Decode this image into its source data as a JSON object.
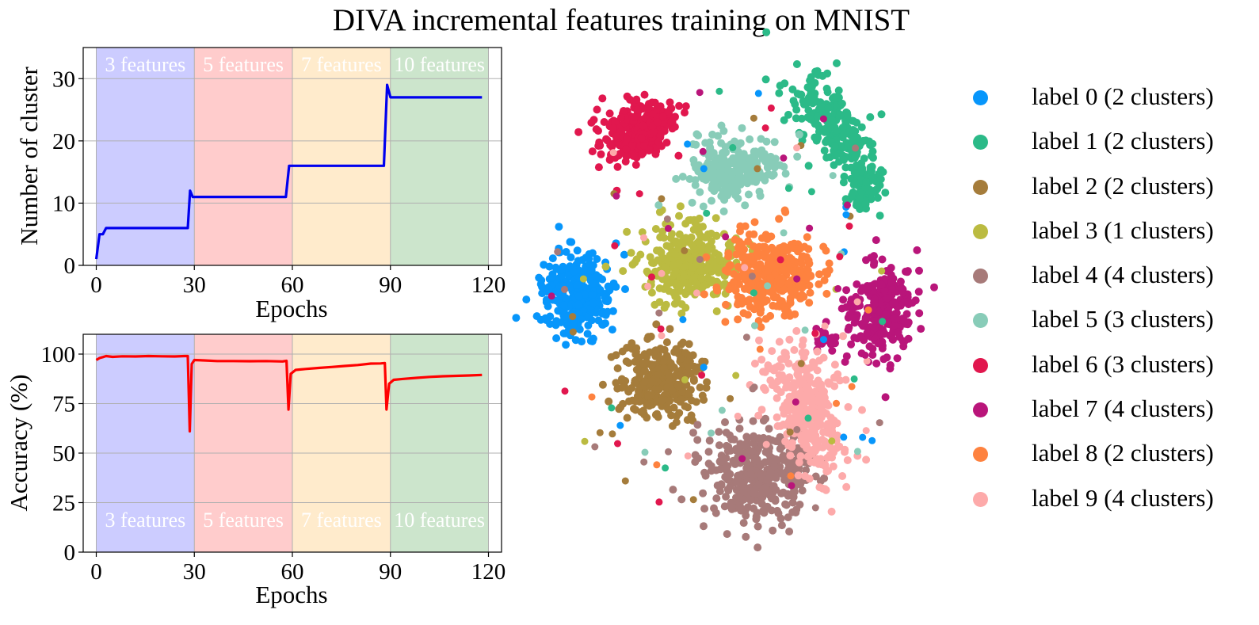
{
  "chart_data": [
    {
      "type": "line",
      "title": "DIVA incremental features training on MNIST",
      "xlabel": "Epochs",
      "ylabel": "Number of cluster",
      "xlim": [
        -4,
        124
      ],
      "ylim": [
        0,
        35
      ],
      "xticks": [
        "0",
        "30",
        "60",
        "90",
        "120"
      ],
      "yticks": [
        "0",
        "10",
        "20",
        "30"
      ],
      "grid": true,
      "color": "#0000ee",
      "phases": [
        {
          "label": "3 features",
          "start": 0,
          "end": 30,
          "color": "#ccccff"
        },
        {
          "label": "5 features",
          "start": 30,
          "end": 60,
          "color": "#ffcccc"
        },
        {
          "label": "7 features",
          "start": 60,
          "end": 90,
          "color": "#ffebcc"
        },
        {
          "label": "10 features",
          "start": 90,
          "end": 120,
          "color": "#cce5cc"
        }
      ],
      "x": [
        0,
        1,
        2,
        3,
        10,
        20,
        28,
        28.7,
        29.5,
        30,
        40,
        50,
        58,
        59,
        65,
        75,
        85,
        88,
        89,
        90,
        100,
        110,
        118
      ],
      "y": [
        1,
        5,
        5,
        6,
        6,
        6,
        6,
        12,
        11,
        11,
        11,
        11,
        11,
        16,
        16,
        16,
        16,
        16,
        29,
        27,
        27,
        27,
        27
      ]
    },
    {
      "type": "line",
      "xlabel": "Epochs",
      "ylabel": "Accuracy (%)",
      "xlim": [
        -4,
        124
      ],
      "ylim": [
        0,
        110
      ],
      "xticks": [
        "0",
        "30",
        "60",
        "90",
        "120"
      ],
      "yticks": [
        "0",
        "25",
        "50",
        "75",
        "100"
      ],
      "grid": true,
      "color": "#ff0000",
      "phases": [
        {
          "label": "3 features",
          "start": 0,
          "end": 30,
          "color": "#ccccff"
        },
        {
          "label": "5 features",
          "start": 30,
          "end": 60,
          "color": "#ffcccc"
        },
        {
          "label": "7 features",
          "start": 60,
          "end": 90,
          "color": "#ffebcc"
        },
        {
          "label": "10 features",
          "start": 90,
          "end": 120,
          "color": "#cce5cc"
        }
      ],
      "x": [
        0,
        1,
        2,
        3,
        5,
        8,
        12,
        16,
        20,
        24,
        27,
        28,
        28.6,
        29.2,
        30,
        33,
        37,
        42,
        47,
        52,
        57,
        58.2,
        58.8,
        59.5,
        61,
        64,
        68,
        72,
        76,
        80,
        84,
        87,
        88.3,
        88.8,
        89.6,
        91,
        94,
        98,
        102,
        106,
        110,
        114,
        118
      ],
      "y": [
        97,
        98,
        98.5,
        99,
        98.6,
        98.9,
        98.8,
        99,
        98.9,
        98.8,
        99,
        99,
        61,
        95,
        97,
        96.8,
        96.5,
        96.5,
        96.4,
        96.5,
        96.3,
        96.6,
        72,
        90,
        92,
        92.5,
        93,
        93.5,
        94,
        94.5,
        95.2,
        95.3,
        95.5,
        72,
        85,
        87,
        87.5,
        88,
        88.5,
        88.8,
        89,
        89.2,
        89.5
      ]
    },
    {
      "type": "scatter",
      "legend_location": "right",
      "legend": [
        {
          "label": "label 0 (2 clusters)",
          "color": "#0796fb"
        },
        {
          "label": "label 1 (2 clusters)",
          "color": "#2bba88"
        },
        {
          "label": "label 2 (2 clusters)",
          "color": "#a57c3b"
        },
        {
          "label": "label 3 (1 clusters)",
          "color": "#bbbb41"
        },
        {
          "label": "label 4 (4 clusters)",
          "color": "#a77a79"
        },
        {
          "label": "label 5 (3 clusters)",
          "color": "#88ccb8"
        },
        {
          "label": "label 6 (3 clusters)",
          "color": "#e1174e"
        },
        {
          "label": "label 7 (4 clusters)",
          "color": "#b9157a"
        },
        {
          "label": "label 8 (2 clusters)",
          "color": "#fe823f"
        },
        {
          "label": "label 9 (4 clusters)",
          "color": "#fdaaaa"
        }
      ]
    }
  ]
}
